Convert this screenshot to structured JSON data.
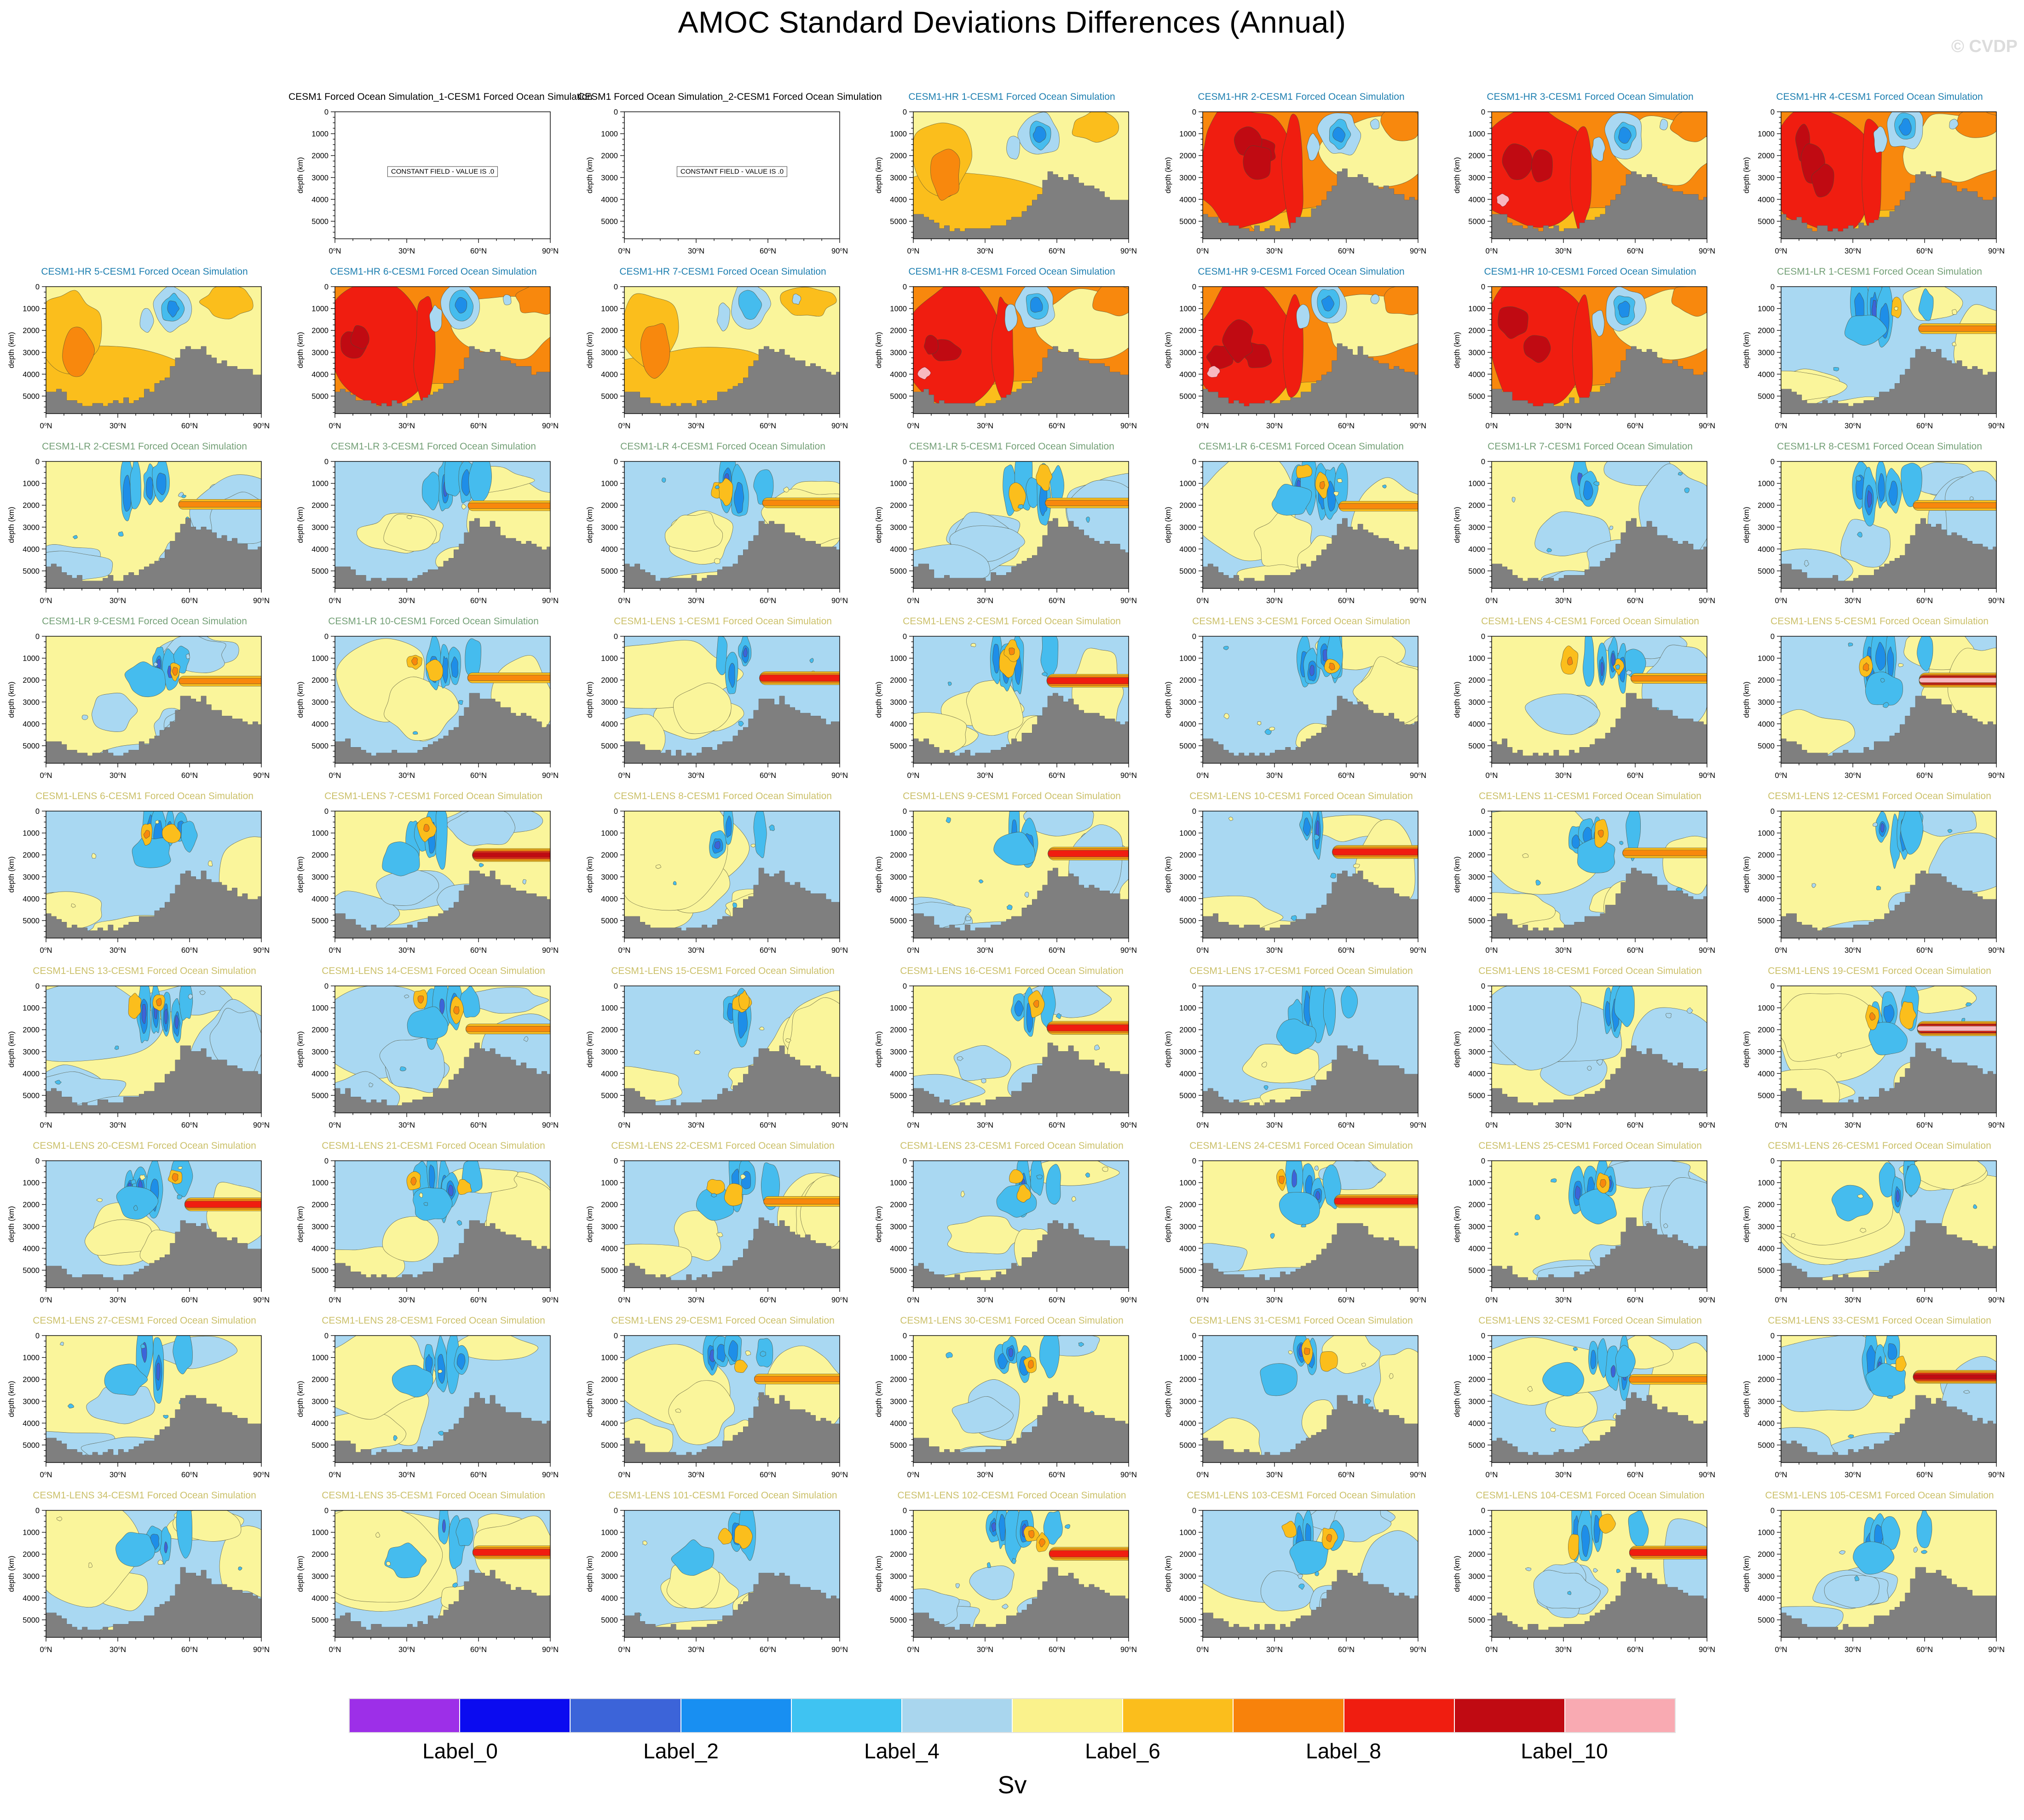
{
  "page": {
    "title": "AMOC Standard Deviations Differences (Annual)",
    "watermark": "© CVDP"
  },
  "axes": {
    "ylabel": "depth (km)",
    "yticks": [
      "0",
      "1000",
      "2000",
      "3000",
      "4000",
      "5000"
    ],
    "ytick_values": [
      0,
      1000,
      2000,
      3000,
      4000,
      5000
    ],
    "xticks": [
      "0°N",
      "30°N",
      "60°N",
      "90°N"
    ],
    "xtick_values": [
      0,
      30,
      60,
      90
    ],
    "x_range_deg_n": [
      0,
      90
    ],
    "depth_range_m": [
      0,
      5800
    ]
  },
  "constant_label": "CONSTANT FIELD - VALUE IS .0",
  "title_colors": {
    "constant": "#000000",
    "hr": "#1E7FB0",
    "lr": "#74A077",
    "lens": "#CBC06A"
  },
  "field_colors": {
    "lblue": "#A9D8F2",
    "yellow": "#FAF59B",
    "sky": "#45BCEE",
    "dodger": "#1E8EE8",
    "royal": "#3C64D9",
    "amber": "#FBBE1C",
    "orange": "#F8880D",
    "red": "#F01D10",
    "dkred": "#C00A12",
    "pink": "#F8B8C0",
    "bathymetry": "#7F7F7F",
    "stroke": "#4A4A33"
  },
  "colorbar": {
    "unit": "Sv",
    "labels": [
      "Label_0",
      "Label_2",
      "Label_4",
      "Label_6",
      "Label_8",
      "Label_10"
    ],
    "colors": [
      "#9D2FE8",
      "#0B0BF0",
      "#3C64D9",
      "#188FF2",
      "#3FC3F2",
      "#A9D6EE",
      "#FAF28C",
      "#FBBE1C",
      "#F8820B",
      "#F01D10",
      "#C00A12",
      "#F9AAB2"
    ]
  },
  "chart_data": {
    "type": "heatmap",
    "subtype": "latitude-depth contour panels (AMOC standard deviation differences)",
    "title": "AMOC Standard Deviations Differences (Annual)",
    "xlabel_ticks": [
      "0°N",
      "30°N",
      "60°N",
      "90°N"
    ],
    "ylabel": "depth (km)",
    "ylabel_ticks": [
      0,
      1000,
      2000,
      3000,
      4000,
      5000
    ],
    "colorbar_unit": "Sv",
    "colorbar_labels": [
      "Label_0",
      "Label_2",
      "Label_4",
      "Label_6",
      "Label_8",
      "Label_10"
    ],
    "grid": {
      "rows": 9,
      "cols": 7
    },
    "panel_count": 62,
    "legend_position": "bottom"
  },
  "panels": [
    {
      "row": 0,
      "col": 1,
      "group": "constant",
      "title": "CESM1 Forced Ocean Simulation_1-CESM1 Forced Ocean Simulation",
      "style": "constant",
      "band": "none",
      "seed": 1
    },
    {
      "row": 0,
      "col": 2,
      "group": "constant",
      "title": "CESM1 Forced Ocean Simulation_2-CESM1 Forced Ocean Simulation",
      "style": "constant",
      "band": "none",
      "seed": 2
    },
    {
      "row": 0,
      "col": 3,
      "group": "hr",
      "title": "CESM1-HR 1-CESM1 Forced Ocean Simulation",
      "style": "warm1",
      "band": "none",
      "seed": 101
    },
    {
      "row": 0,
      "col": 4,
      "group": "hr",
      "title": "CESM1-HR 2-CESM1 Forced Ocean Simulation",
      "style": "warm2",
      "band": "none",
      "seed": 102
    },
    {
      "row": 0,
      "col": 5,
      "group": "hr",
      "title": "CESM1-HR 3-CESM1 Forced Ocean Simulation",
      "style": "warm3",
      "band": "none",
      "seed": 103
    },
    {
      "row": 0,
      "col": 6,
      "group": "hr",
      "title": "CESM1-HR 4-CESM1 Forced Ocean Simulation",
      "style": "warm2",
      "band": "none",
      "seed": 104
    },
    {
      "row": 1,
      "col": 0,
      "group": "hr",
      "title": "CESM1-HR 5-CESM1 Forced Ocean Simulation",
      "style": "warm1",
      "band": "none",
      "seed": 105
    },
    {
      "row": 1,
      "col": 1,
      "group": "hr",
      "title": "CESM1-HR 6-CESM1 Forced Ocean Simulation",
      "style": "warm2",
      "band": "none",
      "seed": 106
    },
    {
      "row": 1,
      "col": 2,
      "group": "hr",
      "title": "CESM1-HR 7-CESM1 Forced Ocean Simulation",
      "style": "warm1",
      "band": "none",
      "seed": 107
    },
    {
      "row": 1,
      "col": 3,
      "group": "hr",
      "title": "CESM1-HR 8-CESM1 Forced Ocean Simulation",
      "style": "warm3",
      "band": "none",
      "seed": 108
    },
    {
      "row": 1,
      "col": 4,
      "group": "hr",
      "title": "CESM1-HR 9-CESM1 Forced Ocean Simulation",
      "style": "warm3",
      "band": "none",
      "seed": 109
    },
    {
      "row": 1,
      "col": 5,
      "group": "hr",
      "title": "CESM1-HR 10-CESM1 Forced Ocean Simulation",
      "style": "warm2",
      "band": "none",
      "seed": 110
    },
    {
      "row": 1,
      "col": 6,
      "group": "lr",
      "title": "CESM1-LR 1-CESM1 Forced Ocean Simulation",
      "style": "cool",
      "band": "orange",
      "seed": 201
    },
    {
      "row": 2,
      "col": 0,
      "group": "lr",
      "title": "CESM1-LR 2-CESM1 Forced Ocean Simulation",
      "style": "cool",
      "band": "orange",
      "seed": 202
    },
    {
      "row": 2,
      "col": 1,
      "group": "lr",
      "title": "CESM1-LR 3-CESM1 Forced Ocean Simulation",
      "style": "cool",
      "band": "orange",
      "seed": 203
    },
    {
      "row": 2,
      "col": 2,
      "group": "lr",
      "title": "CESM1-LR 4-CESM1 Forced Ocean Simulation",
      "style": "cool",
      "band": "orange",
      "seed": 204
    },
    {
      "row": 2,
      "col": 3,
      "group": "lr",
      "title": "CESM1-LR 5-CESM1 Forced Ocean Simulation",
      "style": "cool",
      "band": "orange",
      "seed": 205
    },
    {
      "row": 2,
      "col": 4,
      "group": "lr",
      "title": "CESM1-LR 6-CESM1 Forced Ocean Simulation",
      "style": "cool",
      "band": "orange",
      "seed": 206
    },
    {
      "row": 2,
      "col": 5,
      "group": "lr",
      "title": "CESM1-LR 7-CESM1 Forced Ocean Simulation",
      "style": "cool",
      "band": "none",
      "seed": 207
    },
    {
      "row": 2,
      "col": 6,
      "group": "lr",
      "title": "CESM1-LR 8-CESM1 Forced Ocean Simulation",
      "style": "cool",
      "band": "orange",
      "seed": 208
    },
    {
      "row": 3,
      "col": 0,
      "group": "lr",
      "title": "CESM1-LR 9-CESM1 Forced Ocean Simulation",
      "style": "cool",
      "band": "orange",
      "seed": 209
    },
    {
      "row": 3,
      "col": 1,
      "group": "lr",
      "title": "CESM1-LR 10-CESM1 Forced Ocean Simulation",
      "style": "cool",
      "band": "orange",
      "seed": 210
    },
    {
      "row": 3,
      "col": 2,
      "group": "lens",
      "title": "CESM1-LENS 1-CESM1 Forced Ocean Simulation",
      "style": "cool",
      "band": "red",
      "seed": 301
    },
    {
      "row": 3,
      "col": 3,
      "group": "lens",
      "title": "CESM1-LENS 2-CESM1 Forced Ocean Simulation",
      "style": "cool",
      "band": "red",
      "seed": 302
    },
    {
      "row": 3,
      "col": 4,
      "group": "lens",
      "title": "CESM1-LENS 3-CESM1 Forced Ocean Simulation",
      "style": "cool",
      "band": "none",
      "seed": 303
    },
    {
      "row": 3,
      "col": 5,
      "group": "lens",
      "title": "CESM1-LENS 4-CESM1 Forced Ocean Simulation",
      "style": "cool",
      "band": "orange",
      "seed": 304
    },
    {
      "row": 3,
      "col": 6,
      "group": "lens",
      "title": "CESM1-LENS 5-CESM1 Forced Ocean Simulation",
      "style": "cool",
      "band": "pink",
      "seed": 305
    },
    {
      "row": 4,
      "col": 0,
      "group": "lens",
      "title": "CESM1-LENS 6-CESM1 Forced Ocean Simulation",
      "style": "cool",
      "band": "none",
      "seed": 306
    },
    {
      "row": 4,
      "col": 1,
      "group": "lens",
      "title": "CESM1-LENS 7-CESM1 Forced Ocean Simulation",
      "style": "cool",
      "band": "darkred",
      "seed": 307
    },
    {
      "row": 4,
      "col": 2,
      "group": "lens",
      "title": "CESM1-LENS 8-CESM1 Forced Ocean Simulation",
      "style": "cool",
      "band": "none",
      "seed": 308
    },
    {
      "row": 4,
      "col": 3,
      "group": "lens",
      "title": "CESM1-LENS 9-CESM1 Forced Ocean Simulation",
      "style": "cool",
      "band": "red",
      "seed": 309
    },
    {
      "row": 4,
      "col": 4,
      "group": "lens",
      "title": "CESM1-LENS 10-CESM1 Forced Ocean Simulation",
      "style": "cool",
      "band": "red",
      "seed": 310
    },
    {
      "row": 4,
      "col": 5,
      "group": "lens",
      "title": "CESM1-LENS 11-CESM1 Forced Ocean Simulation",
      "style": "cool",
      "band": "orange",
      "seed": 311
    },
    {
      "row": 4,
      "col": 6,
      "group": "lens",
      "title": "CESM1-LENS 12-CESM1 Forced Ocean Simulation",
      "style": "cool",
      "band": "none",
      "seed": 312
    },
    {
      "row": 5,
      "col": 0,
      "group": "lens",
      "title": "CESM1-LENS 13-CESM1 Forced Ocean Simulation",
      "style": "cool",
      "band": "none",
      "seed": 313
    },
    {
      "row": 5,
      "col": 1,
      "group": "lens",
      "title": "CESM1-LENS 14-CESM1 Forced Ocean Simulation",
      "style": "cool",
      "band": "orange",
      "seed": 314
    },
    {
      "row": 5,
      "col": 2,
      "group": "lens",
      "title": "CESM1-LENS 15-CESM1 Forced Ocean Simulation",
      "style": "cool",
      "band": "none",
      "seed": 315
    },
    {
      "row": 5,
      "col": 3,
      "group": "lens",
      "title": "CESM1-LENS 16-CESM1 Forced Ocean Simulation",
      "style": "cool",
      "band": "red",
      "seed": 316
    },
    {
      "row": 5,
      "col": 4,
      "group": "lens",
      "title": "CESM1-LENS 17-CESM1 Forced Ocean Simulation",
      "style": "cool",
      "band": "none",
      "seed": 317
    },
    {
      "row": 5,
      "col": 5,
      "group": "lens",
      "title": "CESM1-LENS 18-CESM1 Forced Ocean Simulation",
      "style": "cool",
      "band": "none",
      "seed": 318
    },
    {
      "row": 5,
      "col": 6,
      "group": "lens",
      "title": "CESM1-LENS 19-CESM1 Forced Ocean Simulation",
      "style": "cool",
      "band": "pink",
      "seed": 319
    },
    {
      "row": 6,
      "col": 0,
      "group": "lens",
      "title": "CESM1-LENS 20-CESM1 Forced Ocean Simulation",
      "style": "cool",
      "band": "red",
      "seed": 320
    },
    {
      "row": 6,
      "col": 1,
      "group": "lens",
      "title": "CESM1-LENS 21-CESM1 Forced Ocean Simulation",
      "style": "cool",
      "band": "none",
      "seed": 321
    },
    {
      "row": 6,
      "col": 2,
      "group": "lens",
      "title": "CESM1-LENS 22-CESM1 Forced Ocean Simulation",
      "style": "cool",
      "band": "orange",
      "seed": 322
    },
    {
      "row": 6,
      "col": 3,
      "group": "lens",
      "title": "CESM1-LENS 23-CESM1 Forced Ocean Simulation",
      "style": "cool",
      "band": "none",
      "seed": 323
    },
    {
      "row": 6,
      "col": 4,
      "group": "lens",
      "title": "CESM1-LENS 24-CESM1 Forced Ocean Simulation",
      "style": "cool",
      "band": "red",
      "seed": 324
    },
    {
      "row": 6,
      "col": 5,
      "group": "lens",
      "title": "CESM1-LENS 25-CESM1 Forced Ocean Simulation",
      "style": "cool",
      "band": "none",
      "seed": 325
    },
    {
      "row": 6,
      "col": 6,
      "group": "lens",
      "title": "CESM1-LENS 26-CESM1 Forced Ocean Simulation",
      "style": "cool",
      "band": "none",
      "seed": 326
    },
    {
      "row": 7,
      "col": 0,
      "group": "lens",
      "title": "CESM1-LENS 27-CESM1 Forced Ocean Simulation",
      "style": "cool",
      "band": "none",
      "seed": 327
    },
    {
      "row": 7,
      "col": 1,
      "group": "lens",
      "title": "CESM1-LENS 28-CESM1 Forced Ocean Simulation",
      "style": "cool",
      "band": "none",
      "seed": 328
    },
    {
      "row": 7,
      "col": 2,
      "group": "lens",
      "title": "CESM1-LENS 29-CESM1 Forced Ocean Simulation",
      "style": "cool",
      "band": "orange",
      "seed": 329
    },
    {
      "row": 7,
      "col": 3,
      "group": "lens",
      "title": "CESM1-LENS 30-CESM1 Forced Ocean Simulation",
      "style": "cool",
      "band": "none",
      "seed": 330
    },
    {
      "row": 7,
      "col": 4,
      "group": "lens",
      "title": "CESM1-LENS 31-CESM1 Forced Ocean Simulation",
      "style": "cool",
      "band": "none",
      "seed": 331
    },
    {
      "row": 7,
      "col": 5,
      "group": "lens",
      "title": "CESM1-LENS 32-CESM1 Forced Ocean Simulation",
      "style": "cool",
      "band": "orange",
      "seed": 332
    },
    {
      "row": 7,
      "col": 6,
      "group": "lens",
      "title": "CESM1-LENS 33-CESM1 Forced Ocean Simulation",
      "style": "cool",
      "band": "darkred",
      "seed": 333
    },
    {
      "row": 8,
      "col": 0,
      "group": "lens",
      "title": "CESM1-LENS 34-CESM1 Forced Ocean Simulation",
      "style": "cool",
      "band": "none",
      "seed": 334
    },
    {
      "row": 8,
      "col": 1,
      "group": "lens",
      "title": "CESM1-LENS 35-CESM1 Forced Ocean Simulation",
      "style": "cool",
      "band": "red",
      "seed": 335
    },
    {
      "row": 8,
      "col": 2,
      "group": "lens",
      "title": "CESM1-LENS 101-CESM1 Forced Ocean Simulation",
      "style": "cool",
      "band": "none",
      "seed": 336
    },
    {
      "row": 8,
      "col": 3,
      "group": "lens",
      "title": "CESM1-LENS 102-CESM1 Forced Ocean Simulation",
      "style": "cool",
      "band": "red",
      "seed": 337
    },
    {
      "row": 8,
      "col": 4,
      "group": "lens",
      "title": "CESM1-LENS 103-CESM1 Forced Ocean Simulation",
      "style": "cool",
      "band": "none",
      "seed": 338
    },
    {
      "row": 8,
      "col": 5,
      "group": "lens",
      "title": "CESM1-LENS 104-CESM1 Forced Ocean Simulation",
      "style": "cool",
      "band": "red",
      "seed": 339
    },
    {
      "row": 8,
      "col": 6,
      "group": "lens",
      "title": "CESM1-LENS 105-CESM1 Forced Ocean Simulation",
      "style": "cool",
      "band": "none",
      "seed": 340
    }
  ]
}
